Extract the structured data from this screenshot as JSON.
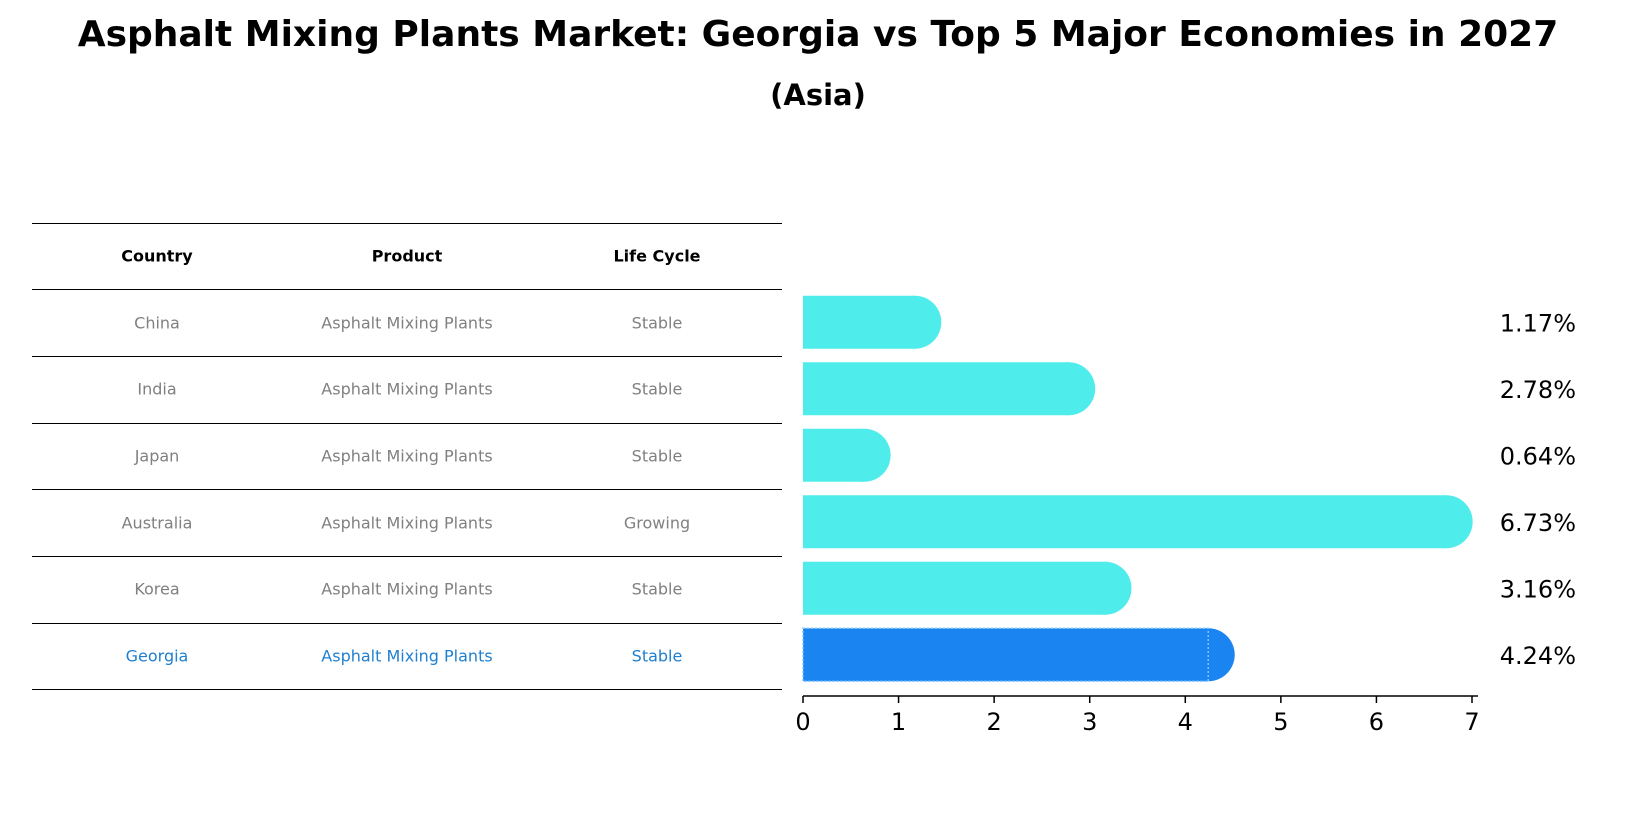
{
  "title": "Asphalt Mixing Plants Market: Georgia vs Top 5 Major Economies in 2027",
  "subtitle": "(Asia)",
  "table": {
    "headers": [
      "Country",
      "Product",
      "Life Cycle"
    ],
    "rows": [
      {
        "country": "China",
        "product": "Asphalt Mixing Plants",
        "life_cycle": "Stable"
      },
      {
        "country": "India",
        "product": "Asphalt Mixing Plants",
        "life_cycle": "Stable"
      },
      {
        "country": "Japan",
        "product": "Asphalt Mixing Plants",
        "life_cycle": "Stable"
      },
      {
        "country": "Australia",
        "product": "Asphalt Mixing Plants",
        "life_cycle": "Growing"
      },
      {
        "country": "Korea",
        "product": "Asphalt Mixing Plants",
        "life_cycle": "Stable"
      },
      {
        "country": "Georgia",
        "product": "Asphalt Mixing Plants",
        "life_cycle": "Stable"
      }
    ]
  },
  "colors": {
    "bar": "#4eedeb",
    "highlight_bar": "#1a85f0",
    "highlight_text": "#1f7fd0",
    "row_text": "#808080"
  },
  "chart_data": {
    "type": "bar",
    "orientation": "horizontal",
    "categories": [
      "China",
      "India",
      "Japan",
      "Australia",
      "Korea",
      "Georgia"
    ],
    "values": [
      1.17,
      2.78,
      0.64,
      6.73,
      3.16,
      4.24
    ],
    "value_labels": [
      "1.17%",
      "2.78%",
      "0.64%",
      "6.73%",
      "3.16%",
      "4.24%"
    ],
    "highlight": "Georgia",
    "xlim": [
      0,
      7
    ],
    "xticks": [
      "0",
      "1",
      "2",
      "3",
      "4",
      "5",
      "6",
      "7"
    ],
    "xlabel": "",
    "ylabel": "",
    "grid": false
  }
}
